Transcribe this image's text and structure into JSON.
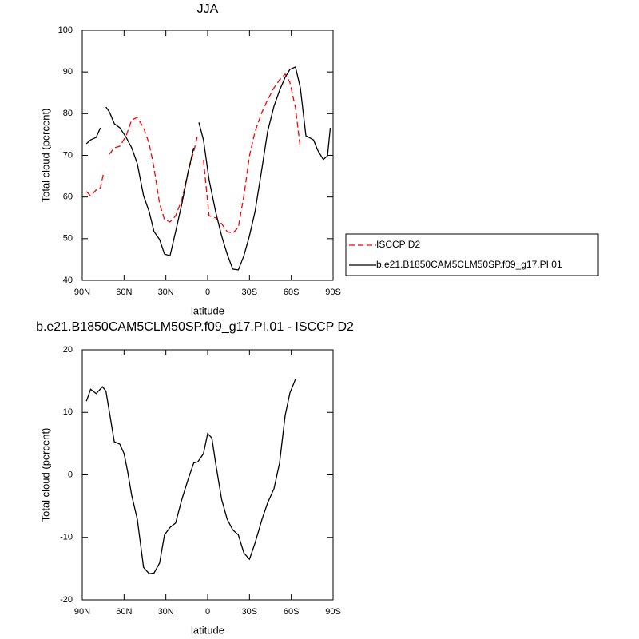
{
  "chart_data": [
    {
      "type": "line",
      "title": "JJA",
      "xlabel": "latitude",
      "ylabel": "Total cloud (percent)",
      "x": [
        87,
        84,
        80,
        77,
        74.5,
        73,
        70.5,
        67,
        63,
        58.5,
        54.5,
        50.5,
        46,
        42,
        38.5,
        34.5,
        31,
        27,
        23,
        18.5,
        14,
        10,
        7,
        6.3,
        3,
        -1,
        -5.7,
        -10,
        -14,
        -18,
        -22,
        -26,
        -30,
        -34,
        -39,
        -43,
        -47.6,
        -51.6,
        -55.6,
        -59,
        -63,
        -66.5,
        -70.5,
        -76,
        -79,
        -83,
        -86,
        -88
      ],
      "series": [
        {
          "name": "ISCCP D2",
          "color": "#ff0000",
          "line_style": "dashed",
          "values": [
            61.3,
            60.3,
            61.7,
            62.2,
            66.1,
            null,
            70.3,
            71.8,
            72.2,
            74.7,
            78.5,
            79.1,
            76.6,
            72.8,
            67,
            58.4,
            54.6,
            54,
            55.5,
            59.4,
            66.1,
            70.9,
            75.1,
            null,
            68.9,
            55.5,
            55,
            53.6,
            51.7,
            51.3,
            52.7,
            60.3,
            69.9,
            75.7,
            80.4,
            83.3,
            86.2,
            88.1,
            89.5,
            87.5,
            81.4,
            71.8,
            null,
            null,
            null,
            null,
            null,
            null
          ]
        },
        {
          "name": "b.e21.B1850CAM5CLM50SP.f09_g17.PI.01",
          "color": "#000000",
          "line_style": "solid",
          "values": [
            72.8,
            73.7,
            74.3,
            76.6,
            null,
            81.6,
            80.4,
            77.6,
            76.6,
            74.3,
            71.8,
            68,
            60.3,
            56.5,
            51.7,
            49.8,
            46.3,
            45.9,
            51.7,
            58.4,
            66.1,
            71.8,
            null,
            77.9,
            73.7,
            64.2,
            56.5,
            50.7,
            46.3,
            42.7,
            42.5,
            45.9,
            50.7,
            56.5,
            67,
            75.7,
            81.8,
            85.6,
            88.7,
            90.6,
            91.2,
            86.2,
            74.7,
            73.7,
            71.2,
            69,
            69.9,
            76.6
          ]
        }
      ],
      "xlim": [
        90,
        -90
      ],
      "xticks": [
        {
          "value": 90,
          "label": "90N"
        },
        {
          "value": 60,
          "label": "60N"
        },
        {
          "value": 30,
          "label": "30N"
        },
        0,
        {
          "value": -30,
          "label": "30S"
        },
        {
          "value": -60,
          "label": "60S"
        },
        {
          "value": -90,
          "label": "90S"
        }
      ],
      "ylim": [
        40,
        100
      ],
      "yticks": [
        40,
        50,
        60,
        70,
        80,
        90,
        100
      ],
      "legend": "right"
    },
    {
      "type": "line",
      "title": "b.e21.B1850CAM5CLM50SP.f09_g17.PI.01 - ISCCP D2",
      "xlabel": "latitude",
      "ylabel": "Total cloud (percent)",
      "x": [
        87,
        84,
        80,
        75.5,
        73,
        67,
        63,
        60,
        57.5,
        54.5,
        50.5,
        46,
        42,
        38.5,
        34.5,
        31,
        27,
        23,
        18.5,
        14,
        10,
        7,
        3,
        0,
        -3,
        -5.7,
        -10,
        -14,
        -18,
        -22,
        -26,
        -30,
        -34,
        -39,
        -43,
        -47.6,
        -51.6,
        -55.6,
        -59,
        -63
      ],
      "series": [
        {
          "color": "#000000",
          "line_style": "solid",
          "values": [
            11.8,
            13.7,
            13.0,
            14.1,
            13.4,
            5.3,
            4.9,
            3.4,
            0.6,
            -3.3,
            -7.1,
            -14.8,
            -15.8,
            -15.7,
            -14.1,
            -9.6,
            -8.4,
            -7.7,
            -3.9,
            -0.7,
            1.9,
            2.1,
            3.4,
            6.6,
            5.9,
            1.9,
            -3.9,
            -7.1,
            -8.8,
            -9.6,
            -12.5,
            -13.5,
            -10.9,
            -7.1,
            -4.5,
            -2.2,
            1.9,
            9.5,
            13.1,
            15.3
          ]
        }
      ],
      "xlim": [
        90,
        -90
      ],
      "xticks": [
        {
          "value": 90,
          "label": "90N"
        },
        {
          "value": 60,
          "label": "60N"
        },
        {
          "value": 30,
          "label": "30N"
        },
        0,
        {
          "value": -30,
          "label": "30S"
        },
        {
          "value": -60,
          "label": "60S"
        },
        {
          "value": -90,
          "label": "90S"
        }
      ],
      "ylim": [
        -20,
        20
      ],
      "yticks": [
        -20,
        -10,
        0,
        10,
        20
      ]
    }
  ]
}
